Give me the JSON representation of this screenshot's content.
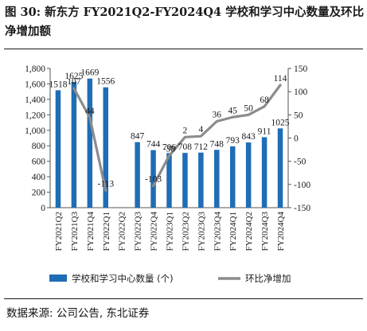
{
  "title": "图 30: 新东方 FY2021Q2-FY2024Q4 学校和学习中心数量及环比净增加额",
  "source": "数据来源: 公司公告, 东北证券",
  "colors": {
    "bar": "#1f6db5",
    "line": "#8c8c8c",
    "text": "#1a1a1a"
  },
  "chart_data": {
    "type": "bar",
    "categories": [
      "FY2021Q2",
      "FY2021Q3",
      "FY2021Q4",
      "FY2022Q1",
      "FY2022Q2",
      "FY2022Q3",
      "FY2022Q4",
      "FY2023Q1",
      "FY2023Q2",
      "FY2023Q3",
      "FY2023Q4",
      "FY2024Q1",
      "FY2024Q2",
      "FY2024Q3",
      "FY2024Q4"
    ],
    "series": [
      {
        "name": "学校和学习中心数量 (个)",
        "type": "bar",
        "axis": "left",
        "values": [
          1518,
          1625,
          1669,
          1556,
          null,
          847,
          744,
          706,
          708,
          712,
          748,
          793,
          843,
          911,
          1025
        ],
        "labels": [
          "1518",
          "1625",
          "1669",
          "1556",
          "",
          "847",
          "744",
          "706",
          "708",
          "712",
          "748",
          "793",
          "843",
          "911",
          "1025"
        ]
      },
      {
        "name": "环比净增加",
        "type": "line",
        "axis": "right",
        "values": [
          null,
          107,
          44,
          -113,
          null,
          null,
          -103,
          -38,
          2,
          4,
          36,
          45,
          50,
          68,
          114
        ],
        "labels": [
          "",
          "107",
          "44",
          "-113",
          "",
          "",
          "-103",
          "-38",
          "2",
          "4",
          "36",
          "45",
          "50",
          "68",
          "114"
        ]
      }
    ],
    "left_axis": {
      "min": 0,
      "max": 1800,
      "step": 200,
      "ticks": [
        "0",
        "200",
        "400",
        "600",
        "800",
        "1,000",
        "1,200",
        "1,400",
        "1,600",
        "1,800"
      ]
    },
    "right_axis": {
      "min": -150,
      "max": 150,
      "step": 50,
      "ticks": [
        "-150",
        "-100",
        "-50",
        "0",
        "50",
        "100",
        "150"
      ]
    },
    "legend_position": "bottom",
    "grid": false
  }
}
